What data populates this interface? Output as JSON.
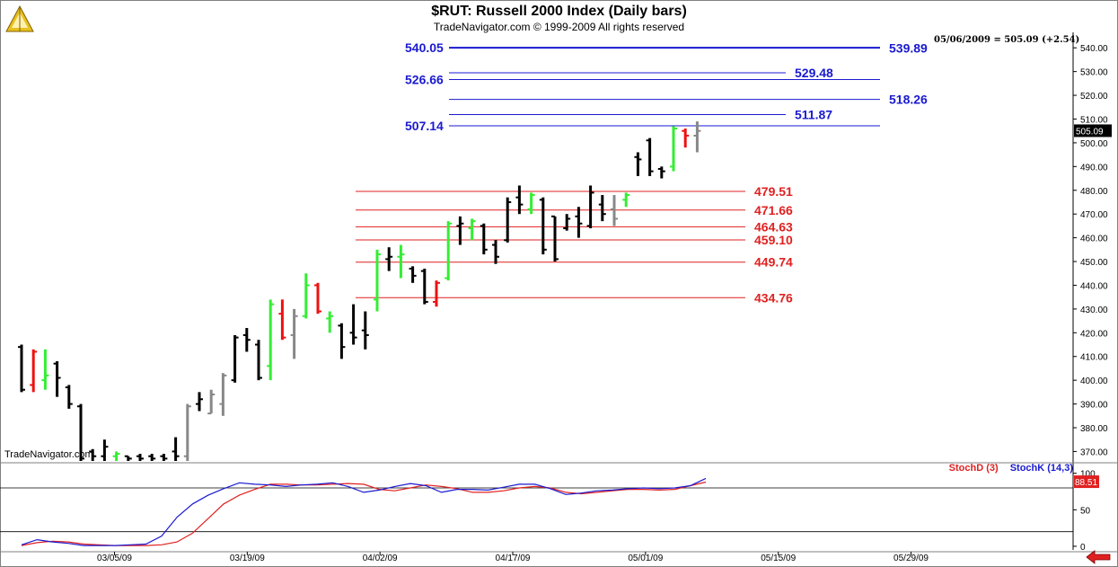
{
  "header": {
    "title": "$RUT:  Russell 2000 Index  (Daily bars)",
    "subtitle": "TradeNavigator.com © 1999-2009 All rights reserved",
    "watermark": "TradeNavigator.com",
    "readout": "05/06/2009 = 505.09 (+2.54)"
  },
  "chart_data": [
    {
      "type": "ohlc",
      "title": "$RUT:  Russell 2000 Index  (Daily bars)",
      "ylim": [
        366,
        545
      ],
      "y_ticks": [
        370,
        380,
        390,
        400,
        410,
        420,
        430,
        440,
        450,
        460,
        470,
        480,
        490,
        500,
        510,
        520,
        530,
        540
      ],
      "y_tick_labels": [
        "370.00",
        "380.00",
        "390.00",
        "400.00",
        "410.00",
        "420.00",
        "430.00",
        "440.00",
        "450.00",
        "460.00",
        "470.00",
        "480.00",
        "490.00",
        "500.00",
        "510.00",
        "520.00",
        "530.00",
        "540.00"
      ],
      "x_tick_labels": [
        "03/05/09",
        "03/19/09",
        "04/02/09",
        "04/17/09",
        "05/01/09",
        "05/15/09",
        "05/29/09"
      ],
      "x_tick_index": [
        7,
        17,
        27,
        37,
        47,
        57,
        67
      ],
      "last_value_label": "505.09",
      "bar_colors": {
        "k": "#000000",
        "g": "#33ee33",
        "r": "#ee1111",
        "y": "#888888"
      },
      "bars": [
        {
          "o": 414,
          "h": 415,
          "l": 395,
          "c": 396,
          "col": "k"
        },
        {
          "o": 398,
          "h": 413,
          "l": 395,
          "c": 412,
          "col": "r"
        },
        {
          "o": 400,
          "h": 413,
          "l": 396,
          "c": 402,
          "col": "g"
        },
        {
          "o": 407,
          "h": 408,
          "l": 393,
          "c": 401,
          "col": "k"
        },
        {
          "o": 397,
          "h": 398,
          "l": 388,
          "c": 390,
          "col": "k"
        },
        {
          "o": 389,
          "h": 390,
          "l": 366,
          "c": 367,
          "col": "k"
        },
        {
          "o": 370,
          "h": 371,
          "l": 366,
          "c": 368,
          "col": "k"
        },
        {
          "o": 368,
          "h": 375,
          "l": 366,
          "c": 372,
          "col": "k"
        },
        {
          "o": 368,
          "h": 370,
          "l": 366,
          "c": 369,
          "col": "g"
        },
        {
          "o": 368,
          "h": 368,
          "l": 366,
          "c": 367,
          "col": "k"
        },
        {
          "o": 368,
          "h": 369,
          "l": 366,
          "c": 367,
          "col": "k"
        },
        {
          "o": 368,
          "h": 369,
          "l": 366,
          "c": 367,
          "col": "k"
        },
        {
          "o": 368,
          "h": 369,
          "l": 366,
          "c": 367,
          "col": "k"
        },
        {
          "o": 370,
          "h": 376,
          "l": 366,
          "c": 368,
          "col": "k"
        },
        {
          "o": 368,
          "h": 390,
          "l": 366,
          "c": 389,
          "col": "y"
        },
        {
          "o": 390,
          "h": 395,
          "l": 387,
          "c": 392,
          "col": "k"
        },
        {
          "o": 386,
          "h": 396,
          "l": 386,
          "c": 394,
          "col": "y"
        },
        {
          "o": 390,
          "h": 403,
          "l": 385,
          "c": 402,
          "col": "y"
        },
        {
          "o": 400,
          "h": 419,
          "l": 399,
          "c": 418,
          "col": "k"
        },
        {
          "o": 419,
          "h": 422,
          "l": 412,
          "c": 417,
          "col": "k"
        },
        {
          "o": 415,
          "h": 417,
          "l": 400,
          "c": 401,
          "col": "k"
        },
        {
          "o": 406,
          "h": 434,
          "l": 400,
          "c": 432,
          "col": "g"
        },
        {
          "o": 428,
          "h": 434,
          "l": 417,
          "c": 418,
          "col": "r"
        },
        {
          "o": 419,
          "h": 430,
          "l": 409,
          "c": 427,
          "col": "y"
        },
        {
          "o": 427,
          "h": 445,
          "l": 426,
          "c": 440,
          "col": "g"
        },
        {
          "o": 440,
          "h": 441,
          "l": 428,
          "c": 429,
          "col": "r"
        },
        {
          "o": 426,
          "h": 429,
          "l": 420,
          "c": 427,
          "col": "g"
        },
        {
          "o": 423,
          "h": 424,
          "l": 409,
          "c": 414,
          "col": "k"
        },
        {
          "o": 420,
          "h": 432,
          "l": 415,
          "c": 418,
          "col": "k"
        },
        {
          "o": 421,
          "h": 429,
          "l": 413,
          "c": 419,
          "col": "k"
        },
        {
          "o": 434,
          "h": 455,
          "l": 429,
          "c": 453,
          "col": "g"
        },
        {
          "o": 451,
          "h": 456,
          "l": 446,
          "c": 452,
          "col": "k"
        },
        {
          "o": 452,
          "h": 457,
          "l": 443,
          "c": 453,
          "col": "g"
        },
        {
          "o": 447,
          "h": 448,
          "l": 441,
          "c": 444,
          "col": "k"
        },
        {
          "o": 446,
          "h": 447,
          "l": 432,
          "c": 433,
          "col": "k"
        },
        {
          "o": 433,
          "h": 442,
          "l": 431,
          "c": 441,
          "col": "r"
        },
        {
          "o": 443,
          "h": 467,
          "l": 442,
          "c": 466,
          "col": "g"
        },
        {
          "o": 465,
          "h": 469,
          "l": 457,
          "c": 466,
          "col": "k"
        },
        {
          "o": 464,
          "h": 468,
          "l": 459,
          "c": 467,
          "col": "g"
        },
        {
          "o": 465,
          "h": 466,
          "l": 453,
          "c": 455,
          "col": "k"
        },
        {
          "o": 457,
          "h": 459,
          "l": 449,
          "c": 452,
          "col": "k"
        },
        {
          "o": 459,
          "h": 477,
          "l": 458,
          "c": 475,
          "col": "k"
        },
        {
          "o": 477,
          "h": 482,
          "l": 470,
          "c": 474,
          "col": "k"
        },
        {
          "o": 472,
          "h": 479,
          "l": 470,
          "c": 478,
          "col": "g"
        },
        {
          "o": 476,
          "h": 477,
          "l": 453,
          "c": 455,
          "col": "k"
        },
        {
          "o": 469,
          "h": 469,
          "l": 450,
          "c": 451,
          "col": "k"
        },
        {
          "o": 464,
          "h": 470,
          "l": 463,
          "c": 468,
          "col": "k"
        },
        {
          "o": 469,
          "h": 473,
          "l": 460,
          "c": 466,
          "col": "k"
        },
        {
          "o": 465,
          "h": 482,
          "l": 464,
          "c": 479,
          "col": "k"
        },
        {
          "o": 474,
          "h": 478,
          "l": 467,
          "c": 470,
          "col": "k"
        },
        {
          "o": 472,
          "h": 478,
          "l": 465,
          "c": 468,
          "col": "y"
        },
        {
          "o": 476,
          "h": 479,
          "l": 473,
          "c": 478,
          "col": "g"
        },
        {
          "o": 494,
          "h": 496,
          "l": 486,
          "c": 493,
          "col": "k"
        },
        {
          "o": 501,
          "h": 502,
          "l": 486,
          "c": 488,
          "col": "k"
        },
        {
          "o": 489,
          "h": 490,
          "l": 485,
          "c": 488,
          "col": "k"
        },
        {
          "o": 490,
          "h": 507,
          "l": 488,
          "c": 506,
          "col": "g"
        },
        {
          "o": 505,
          "h": 506,
          "l": 498,
          "c": 503,
          "col": "r"
        },
        {
          "o": 503,
          "h": 509,
          "l": 496,
          "c": 505,
          "col": "y"
        }
      ],
      "bar_x": [
        24,
        38,
        51,
        66,
        82,
        98,
        112,
        128,
        143,
        157,
        172,
        187,
        190,
        203,
        218,
        232,
        247,
        262,
        278,
        292,
        306,
        322,
        336,
        350,
        366,
        382,
        396,
        396,
        410,
        426,
        441,
        456,
        470,
        486,
        502,
        516,
        531,
        545,
        560,
        576,
        592,
        606,
        622,
        636,
        652,
        666,
        682,
        696,
        712,
        726,
        742,
        756,
        770,
        786,
        665,
        680,
        696,
        710
      ],
      "fib_blue": {
        "color": "#1a1ad0",
        "lines": [
          {
            "y": 540.05,
            "label": "540.05",
            "side": "left"
          },
          {
            "y": 539.89,
            "label": "539.89",
            "side": "right"
          },
          {
            "y": 529.48,
            "label": "529.48",
            "side": "right"
          },
          {
            "y": 526.66,
            "label": "526.66",
            "side": "left"
          },
          {
            "y": 518.26,
            "label": "518.26",
            "side": "right"
          },
          {
            "y": 511.87,
            "label": "511.87",
            "side": "right"
          },
          {
            "y": 507.14,
            "label": "507.14",
            "side": "left"
          }
        ]
      },
      "fib_red": {
        "color": "#e02020",
        "lines": [
          {
            "y": 479.51,
            "label": "479.51"
          },
          {
            "y": 471.66,
            "label": "471.66"
          },
          {
            "y": 464.63,
            "label": "464.63"
          },
          {
            "y": 459.1,
            "label": "459.10"
          },
          {
            "y": 449.74,
            "label": "449.74"
          },
          {
            "y": 434.76,
            "label": "434.76"
          }
        ]
      }
    },
    {
      "type": "line",
      "legend": [
        "StochD (3)",
        "StochK (14,3)"
      ],
      "ylim": [
        -5,
        112
      ],
      "y_ticks": [
        0,
        50,
        100
      ],
      "y_tick_labels": [
        "0",
        "50",
        "100"
      ],
      "h_lines": [
        20,
        80
      ],
      "last_value_label": "88.51",
      "series": [
        {
          "name": "StochD (3)",
          "color": "#e02020",
          "values": [
            1,
            5,
            7,
            6,
            3,
            2,
            1,
            1,
            1,
            2,
            6,
            18,
            38,
            58,
            70,
            78,
            85,
            85,
            84,
            84,
            85,
            86,
            85,
            78,
            76,
            80,
            84,
            82,
            79,
            74,
            74,
            76,
            80,
            82,
            80,
            74,
            72,
            74,
            76,
            78,
            78,
            77,
            78,
            83,
            88
          ]
        },
        {
          "name": "StochK (14,3)",
          "color": "#1a1ad0",
          "values": [
            2,
            9,
            6,
            4,
            1,
            1,
            1,
            2,
            3,
            14,
            40,
            58,
            70,
            79,
            87,
            85,
            84,
            82,
            84,
            85,
            87,
            82,
            74,
            77,
            82,
            86,
            83,
            74,
            78,
            78,
            77,
            81,
            85,
            85,
            79,
            71,
            73,
            76,
            77,
            79,
            80,
            79,
            80,
            83,
            93
          ]
        }
      ],
      "x_end_index": 57
    }
  ],
  "legend_labels": {
    "d": "StochD (3)",
    "k": "StochK (14,3)"
  }
}
